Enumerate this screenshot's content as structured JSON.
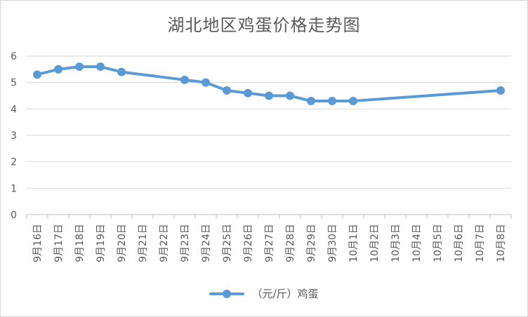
{
  "chart_data": {
    "type": "line",
    "title": "湖北地区鸡蛋价格走势图",
    "xlabel": "",
    "ylabel": "",
    "ylim": [
      0,
      6
    ],
    "yticks": [
      "0",
      "1",
      "2",
      "3",
      "4",
      "5",
      "6"
    ],
    "categories": [
      "9月16日",
      "9月17日",
      "9月18日",
      "9月19日",
      "9月20日",
      "9月21日",
      "9月22日",
      "9月23日",
      "9月24日",
      "9月25日",
      "9月26日",
      "9月27日",
      "9月28日",
      "9月29日",
      "9月30日",
      "10月1日",
      "10月2日",
      "10月3日",
      "10月4日",
      "10月5日",
      "10月6日",
      "10月7日",
      "10月8日"
    ],
    "series": [
      {
        "name": "（元/斤）鸡蛋",
        "color": "#5b9bd5",
        "values": [
          5.3,
          5.5,
          5.6,
          5.6,
          5.4,
          null,
          null,
          5.1,
          5.0,
          4.7,
          4.6,
          4.5,
          4.5,
          4.3,
          4.3,
          4.3,
          null,
          null,
          null,
          null,
          null,
          null,
          4.7
        ]
      }
    ],
    "grid": true,
    "legend": "bottom"
  }
}
